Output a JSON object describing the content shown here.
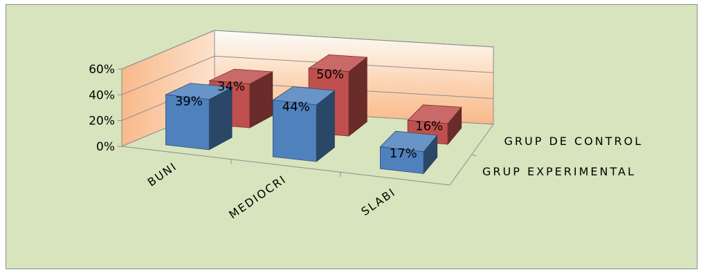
{
  "chart_data": {
    "type": "bar",
    "categories": [
      "BUNI",
      "MEDIOCRI",
      "SLABI"
    ],
    "series": [
      {
        "name": "GRUP EXPERIMENTAL",
        "values": [
          39,
          44,
          17
        ],
        "labels": [
          "39%",
          "44%",
          "17%"
        ],
        "color": "#4f81bd"
      },
      {
        "name": "GRUP DE CONTROL",
        "values": [
          34,
          50,
          16
        ],
        "labels": [
          "34%",
          "50%",
          "16%"
        ],
        "color": "#c0504d"
      }
    ],
    "y_ticks": [
      "0%",
      "20%",
      "40%",
      "60%"
    ],
    "ylim": [
      0,
      60
    ],
    "style": "3d-column",
    "back_wall_gradient": [
      "#f79646",
      "#fde9d9"
    ],
    "background": "#d7e4bd"
  }
}
